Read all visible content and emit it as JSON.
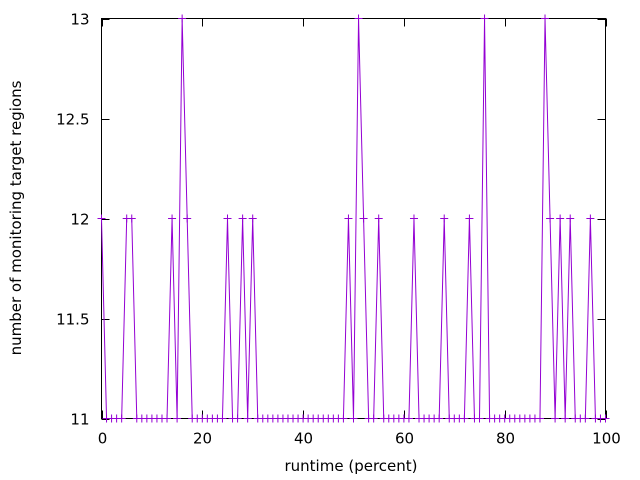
{
  "chart_data": {
    "type": "line",
    "title": "",
    "xlabel": "runtime (percent)",
    "ylabel": "number of monitoring target regions",
    "xlim": [
      0,
      100
    ],
    "ylim": [
      11,
      13
    ],
    "xticks": [
      0,
      20,
      40,
      60,
      80,
      100
    ],
    "yticks": [
      11,
      11.5,
      12,
      12.5,
      13
    ],
    "xtick_labels": [
      "0",
      "20",
      "40",
      "60",
      "80",
      "100"
    ],
    "ytick_labels": [
      "11",
      "11.5",
      "12",
      "12.5",
      "13"
    ],
    "grid": false,
    "legend": "none",
    "line_color": "#9400d3",
    "marker": "plus",
    "series": [
      {
        "x": [
          0,
          1,
          2,
          3,
          4,
          5,
          6,
          7,
          8,
          9,
          10,
          11,
          12,
          13,
          14,
          15,
          16,
          17,
          18,
          19,
          20,
          21,
          22,
          23,
          24,
          25,
          26,
          27,
          28,
          29,
          30,
          31,
          32,
          33,
          34,
          35,
          36,
          37,
          38,
          39,
          40,
          41,
          42,
          43,
          44,
          45,
          46,
          47,
          48,
          49,
          50,
          51,
          52,
          53,
          54,
          55,
          56,
          57,
          58,
          59,
          60,
          61,
          62,
          63,
          64,
          65,
          66,
          67,
          68,
          69,
          70,
          71,
          72,
          73,
          74,
          75,
          76,
          77,
          78,
          79,
          80,
          81,
          82,
          83,
          84,
          85,
          86,
          87,
          88,
          89,
          90,
          91,
          92,
          93,
          94,
          95,
          96,
          97,
          98,
          99,
          100
        ],
        "y": [
          12,
          11,
          11,
          11,
          11,
          12,
          12,
          11,
          11,
          11,
          11,
          11,
          11,
          11,
          12,
          11,
          13,
          12,
          11,
          11,
          11,
          11,
          11,
          11,
          11,
          12,
          11,
          11,
          12,
          11,
          12,
          11,
          11,
          11,
          11,
          11,
          11,
          11,
          11,
          11,
          11,
          11,
          11,
          11,
          11,
          11,
          11,
          11,
          11,
          12,
          11,
          13,
          12,
          11,
          11,
          12,
          11,
          11,
          11,
          11,
          11,
          11,
          12,
          11,
          11,
          11,
          11,
          11,
          12,
          11,
          11,
          11,
          11,
          12,
          11,
          11,
          13,
          11,
          11,
          11,
          11,
          11,
          11,
          11,
          11,
          11,
          11,
          11,
          13,
          12,
          11,
          12,
          11,
          12,
          11,
          11,
          11,
          12,
          11,
          11,
          11
        ]
      }
    ]
  }
}
